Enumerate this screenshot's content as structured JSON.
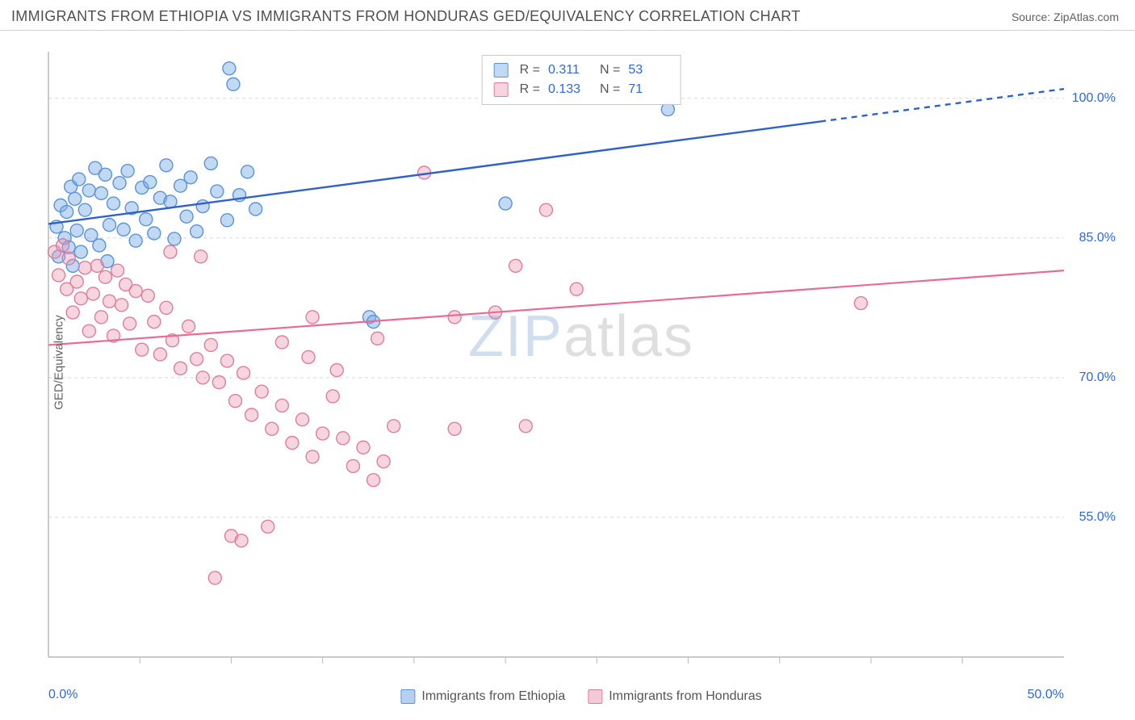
{
  "header": {
    "title": "IMMIGRANTS FROM ETHIOPIA VS IMMIGRANTS FROM HONDURAS GED/EQUIVALENCY CORRELATION CHART",
    "source_prefix": "Source: ",
    "source_link": "ZipAtlas.com"
  },
  "watermark": {
    "part1": "ZIP",
    "part2": "atlas"
  },
  "chart": {
    "type": "scatter",
    "ylabel": "GED/Equivalency",
    "xlim": [
      0,
      50
    ],
    "ylim": [
      40,
      105
    ],
    "x_ticks": [
      0,
      50
    ],
    "x_tick_labels": [
      "0.0%",
      "50.0%"
    ],
    "x_minor_ticks": [
      4.5,
      9,
      13.5,
      18,
      22.5,
      27,
      31.5,
      36,
      40.5,
      45
    ],
    "y_ticks": [
      55,
      70,
      85,
      100
    ],
    "y_tick_labels": [
      "55.0%",
      "70.0%",
      "85.0%",
      "100.0%"
    ],
    "grid_color": "#d8d8d8",
    "axis_color": "#bababa",
    "background_color": "#ffffff",
    "marker_radius": 8,
    "marker_stroke_width": 1.4,
    "series": [
      {
        "name": "Immigrants from Ethiopia",
        "fill": "rgba(120,170,230,0.45)",
        "stroke": "#5a93d9",
        "line_color": "#2f62c9",
        "line_width": 2.4,
        "R": "0.311",
        "N": "53",
        "trend": {
          "x1": 0,
          "y1": 86.5,
          "x2": 38,
          "y2": 97.5,
          "dash_from_x": 38,
          "dash_to_x": 50,
          "dash_y2": 101
        },
        "points": [
          [
            0.4,
            86.2
          ],
          [
            0.6,
            88.5
          ],
          [
            0.8,
            85.0
          ],
          [
            0.9,
            87.8
          ],
          [
            1.0,
            84.0
          ],
          [
            1.1,
            90.5
          ],
          [
            1.3,
            89.2
          ],
          [
            1.4,
            85.8
          ],
          [
            1.5,
            91.3
          ],
          [
            1.6,
            83.5
          ],
          [
            1.8,
            88.0
          ],
          [
            2.0,
            90.1
          ],
          [
            2.1,
            85.3
          ],
          [
            2.3,
            92.5
          ],
          [
            2.5,
            84.2
          ],
          [
            2.6,
            89.8
          ],
          [
            2.8,
            91.8
          ],
          [
            3.0,
            86.4
          ],
          [
            3.2,
            88.7
          ],
          [
            3.5,
            90.9
          ],
          [
            3.7,
            85.9
          ],
          [
            3.9,
            92.2
          ],
          [
            4.1,
            88.2
          ],
          [
            4.3,
            84.7
          ],
          [
            4.6,
            90.4
          ],
          [
            4.8,
            87.0
          ],
          [
            5.0,
            91.0
          ],
          [
            5.2,
            85.5
          ],
          [
            5.5,
            89.3
          ],
          [
            5.8,
            92.8
          ],
          [
            6.0,
            88.9
          ],
          [
            6.2,
            84.9
          ],
          [
            6.5,
            90.6
          ],
          [
            6.8,
            87.3
          ],
          [
            7.0,
            91.5
          ],
          [
            7.3,
            85.7
          ],
          [
            7.6,
            88.4
          ],
          [
            8.0,
            93.0
          ],
          [
            8.3,
            90.0
          ],
          [
            8.8,
            86.9
          ],
          [
            8.9,
            103.2
          ],
          [
            9.1,
            101.5
          ],
          [
            9.4,
            89.6
          ],
          [
            9.8,
            92.1
          ],
          [
            10.2,
            88.1
          ],
          [
            15.8,
            76.5
          ],
          [
            16.0,
            76.0
          ],
          [
            22.5,
            88.7
          ],
          [
            29.0,
            103.5
          ],
          [
            30.5,
            98.8
          ],
          [
            0.5,
            83.0
          ],
          [
            1.2,
            82.0
          ],
          [
            2.9,
            82.5
          ]
        ]
      },
      {
        "name": "Immigrants from Honduras",
        "fill": "rgba(235,150,175,0.40)",
        "stroke": "#df7d9e",
        "line_color": "#e96b94",
        "line_width": 2.2,
        "R": "0.133",
        "N": "71",
        "trend": {
          "x1": 0,
          "y1": 73.5,
          "x2": 50,
          "y2": 81.5
        },
        "points": [
          [
            0.3,
            83.5
          ],
          [
            0.5,
            81.0
          ],
          [
            0.7,
            84.2
          ],
          [
            0.9,
            79.5
          ],
          [
            1.0,
            82.8
          ],
          [
            1.2,
            77.0
          ],
          [
            1.4,
            80.3
          ],
          [
            1.6,
            78.5
          ],
          [
            1.8,
            81.8
          ],
          [
            2.0,
            75.0
          ],
          [
            2.2,
            79.0
          ],
          [
            2.4,
            82.0
          ],
          [
            2.6,
            76.5
          ],
          [
            2.8,
            80.8
          ],
          [
            3.0,
            78.2
          ],
          [
            3.2,
            74.5
          ],
          [
            3.4,
            81.5
          ],
          [
            3.6,
            77.8
          ],
          [
            3.8,
            80.0
          ],
          [
            4.0,
            75.8
          ],
          [
            4.3,
            79.3
          ],
          [
            4.6,
            73.0
          ],
          [
            4.9,
            78.8
          ],
          [
            5.2,
            76.0
          ],
          [
            5.5,
            72.5
          ],
          [
            5.8,
            77.5
          ],
          [
            6.1,
            74.0
          ],
          [
            6.5,
            71.0
          ],
          [
            6.9,
            75.5
          ],
          [
            7.3,
            72.0
          ],
          [
            7.6,
            70.0
          ],
          [
            8.0,
            73.5
          ],
          [
            8.4,
            69.5
          ],
          [
            8.8,
            71.8
          ],
          [
            9.2,
            67.5
          ],
          [
            9.6,
            70.5
          ],
          [
            10.0,
            66.0
          ],
          [
            10.5,
            68.5
          ],
          [
            11.0,
            64.5
          ],
          [
            11.5,
            67.0
          ],
          [
            12.0,
            63.0
          ],
          [
            12.5,
            65.5
          ],
          [
            13.0,
            61.5
          ],
          [
            13.5,
            64.0
          ],
          [
            14.0,
            68.0
          ],
          [
            14.5,
            63.5
          ],
          [
            15.0,
            60.5
          ],
          [
            15.5,
            62.5
          ],
          [
            16.0,
            59.0
          ],
          [
            16.5,
            61.0
          ],
          [
            17.0,
            64.8
          ],
          [
            8.2,
            48.5
          ],
          [
            9.0,
            53.0
          ],
          [
            9.5,
            52.5
          ],
          [
            10.8,
            54.0
          ],
          [
            11.5,
            73.8
          ],
          [
            12.8,
            72.2
          ],
          [
            14.2,
            70.8
          ],
          [
            18.5,
            92.0
          ],
          [
            20.0,
            76.5
          ],
          [
            20.0,
            64.5
          ],
          [
            22.0,
            77.0
          ],
          [
            23.0,
            82.0
          ],
          [
            23.5,
            64.8
          ],
          [
            24.5,
            88.0
          ],
          [
            26.0,
            79.5
          ],
          [
            40.0,
            78.0
          ],
          [
            6.0,
            83.5
          ],
          [
            7.5,
            83.0
          ],
          [
            13.0,
            76.5
          ],
          [
            16.2,
            74.2
          ]
        ]
      }
    ],
    "bottom_legend": [
      {
        "label": "Immigrants from Ethiopia",
        "fill": "rgba(120,170,230,0.55)",
        "stroke": "#5a93d9"
      },
      {
        "label": "Immigrants from Honduras",
        "fill": "rgba(235,150,175,0.50)",
        "stroke": "#df7d9e"
      }
    ]
  }
}
